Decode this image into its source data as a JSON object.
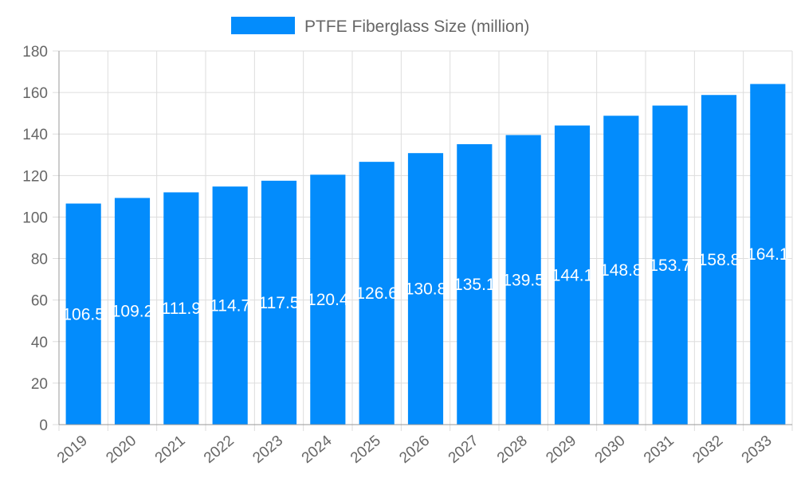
{
  "chart_data": {
    "type": "bar",
    "categories": [
      "2019",
      "2020",
      "2021",
      "2022",
      "2023",
      "2024",
      "2025",
      "2026",
      "2027",
      "2028",
      "2029",
      "2030",
      "2031",
      "2032",
      "2033"
    ],
    "series": [
      {
        "name": "PTFE Fiberglass Size (million)",
        "values": [
          106.5,
          109.2,
          111.9,
          114.7,
          117.5,
          120.4,
          126.6,
          130.8,
          135.1,
          139.5,
          144.1,
          148.8,
          153.7,
          158.8,
          164.1
        ],
        "color": "#038cfc"
      }
    ],
    "ylim": [
      0,
      180
    ],
    "yticks": [
      0,
      20,
      40,
      60,
      80,
      100,
      120,
      140,
      160,
      180
    ],
    "grid": true,
    "legend": "top-center",
    "xlabel": "",
    "ylabel": ""
  }
}
